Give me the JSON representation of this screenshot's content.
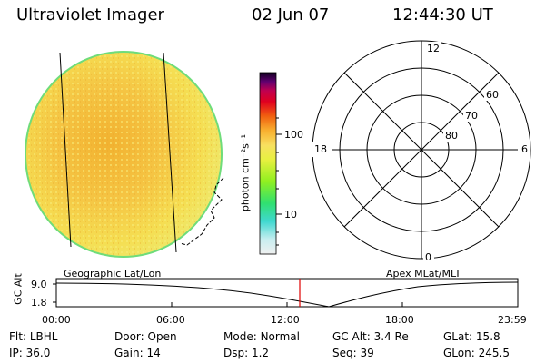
{
  "header": {
    "instrument": "Ultraviolet Imager",
    "date": "02 Jun 07",
    "time": "12:44:30 UT"
  },
  "colorbar": {
    "unit_label": "photon cm⁻²s⁻¹",
    "ticks": [
      "100",
      "10"
    ]
  },
  "polar_plot": {
    "mlt_labels": [
      "12",
      "18",
      "6",
      "0"
    ],
    "lat_labels": [
      "60",
      "70",
      "80"
    ]
  },
  "timeline": {
    "left_label": "Geographic Lat/Lon",
    "right_label": "Apex MLat/MLT",
    "axis_title": "GC Alt",
    "y_ticks": [
      "9.0",
      "1.8"
    ],
    "x_ticks": [
      "00:00",
      "06:00",
      "12:00",
      "18:00",
      "23:59"
    ],
    "marker_color": "#e00000"
  },
  "info": {
    "row1": [
      {
        "label": "Flt:",
        "value": "LBHL"
      },
      {
        "label": "Door:",
        "value": "Open"
      },
      {
        "label": "Mode:",
        "value": "Normal"
      },
      {
        "label": "GC Alt:",
        "value": "3.4 Re"
      },
      {
        "label": "GLat:",
        "value": "15.8"
      }
    ],
    "row2": [
      {
        "label": "IP:",
        "value": "36.0"
      },
      {
        "label": "Gain:",
        "value": "14"
      },
      {
        "label": "Dsp:",
        "value": "1.2"
      },
      {
        "label": "Seq:",
        "value": "39"
      },
      {
        "label": "GLon:",
        "value": "245.5"
      }
    ]
  },
  "colors": {
    "image_fill": "#f3e24a",
    "image_center": "#f2b83a",
    "limb": "#6fdc7a"
  }
}
